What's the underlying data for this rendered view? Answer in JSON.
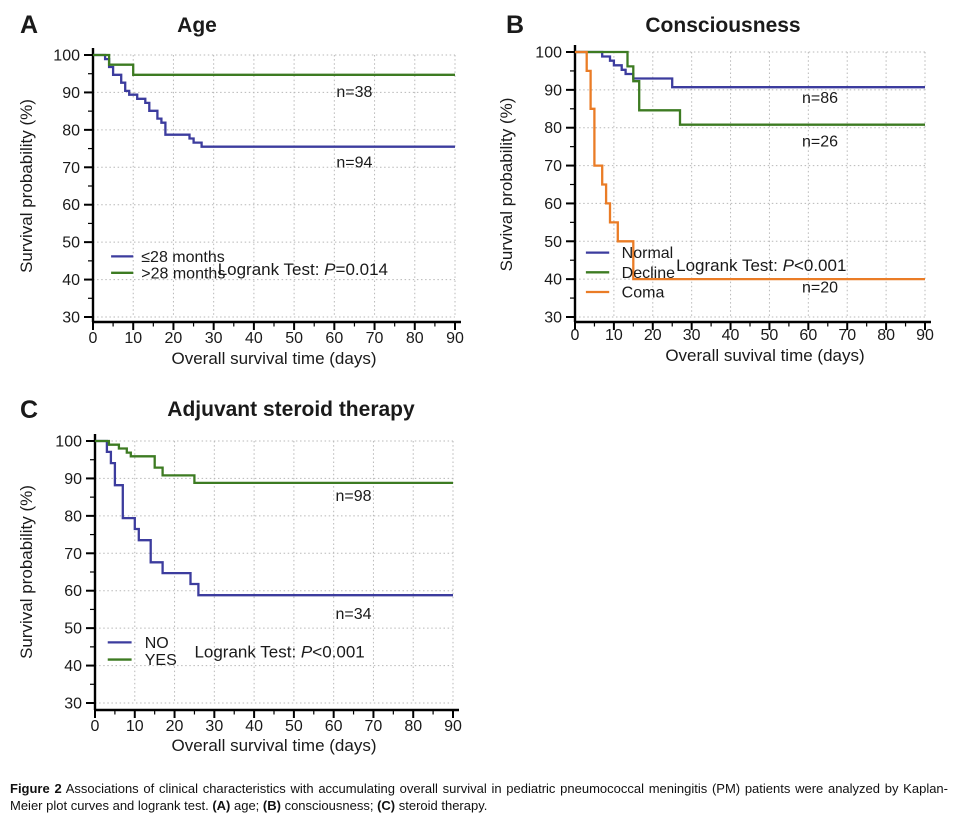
{
  "caption": {
    "parts": [
      {
        "text": "Figure 2",
        "bold": true
      },
      {
        "text": " Associations of clinical characteristics with accumulating overall survival in pediatric pneumococcal meningitis (PM) patients were analyzed by Kaplan-Meier plot curves and logrank test. ",
        "bold": false
      },
      {
        "text": "(A)",
        "bold": true
      },
      {
        "text": " age; ",
        "bold": false
      },
      {
        "text": "(B)",
        "bold": true
      },
      {
        "text": " consciousness; ",
        "bold": false
      },
      {
        "text": "(C)",
        "bold": true
      },
      {
        "text": " steroid therapy.",
        "bold": false
      }
    ]
  },
  "colors": {
    "blue": "#3c3c9e",
    "green": "#3d7b22",
    "orange": "#ea7c26",
    "grid": "#b8b8b8",
    "axis": "#000000",
    "text": "#1a1a1a"
  },
  "chart_data": [
    {
      "type": "line",
      "subtype": "kaplan-meier-step",
      "panel_label": "A",
      "title": "Age",
      "xlabel": "Overall survival time (days)",
      "ylabel": "Survival probability (%)",
      "xlim": [
        0,
        90
      ],
      "ylim": [
        30,
        100
      ],
      "xtick_major": 10,
      "xtick_minor": 5,
      "ytick_major": 10,
      "ytick_minor": 5,
      "grid": true,
      "legend_position": "lower-left",
      "legend": {
        "x_day": 4.5,
        "swatch_days": 5.5,
        "text_day": 12,
        "rows_pct": [
          46.2,
          41.8
        ]
      },
      "logrank": {
        "pre": "Logrank Test: ",
        "p": "P",
        "post": "=0.014",
        "x_day": 31,
        "y_pct": 42.5
      },
      "series": [
        {
          "name": "≤28 months",
          "color": "blue",
          "n": 94,
          "n_label": "n=94",
          "n_x_day": 65,
          "n_y_pct": 70,
          "steps": [
            [
              0,
              100
            ],
            [
              3,
              98.9
            ],
            [
              4,
              96.8
            ],
            [
              5,
              94.7
            ],
            [
              7,
              92.6
            ],
            [
              8,
              90.4
            ],
            [
              9,
              89.4
            ],
            [
              11,
              88.3
            ],
            [
              13,
              87.2
            ],
            [
              14,
              85.1
            ],
            [
              16,
              83.0
            ],
            [
              17,
              81.9
            ],
            [
              18,
              78.7
            ],
            [
              24,
              77.7
            ],
            [
              25,
              76.6
            ],
            [
              27,
              75.5
            ],
            [
              90,
              75.5
            ]
          ]
        },
        {
          "name": ">28 months",
          "color": "green",
          "n": 38,
          "n_label": "n=38",
          "n_x_day": 65,
          "n_y_pct": 88.8,
          "steps": [
            [
              0,
              100
            ],
            [
              4,
              97.4
            ],
            [
              10,
              94.7
            ],
            [
              90,
              94.7
            ]
          ]
        }
      ]
    },
    {
      "type": "line",
      "subtype": "kaplan-meier-step",
      "panel_label": "B",
      "title": "Consciousness",
      "xlabel": "Overall suvival time (days)",
      "ylabel": "Survival probability (%)",
      "xlim": [
        0,
        90
      ],
      "ylim": [
        30,
        100
      ],
      "xtick_major": 10,
      "xtick_minor": 5,
      "ytick_major": 10,
      "ytick_minor": 5,
      "grid": true,
      "legend_position": "lower-left",
      "legend": {
        "x_day": 2.8,
        "swatch_days": 6,
        "text_day": 12,
        "rows_pct": [
          47.0,
          41.8,
          36.6
        ]
      },
      "logrank": {
        "pre": "Logrank Test: ",
        "p": "P",
        "post": "<0.001",
        "x_day": 26,
        "y_pct": 43.5
      },
      "series": [
        {
          "name": "Normal",
          "color": "blue",
          "n": 86,
          "n_label": "n=86",
          "n_x_day": 63,
          "n_y_pct": 86.5,
          "steps": [
            [
              0,
              100
            ],
            [
              7,
              98.8
            ],
            [
              9,
              97.7
            ],
            [
              10,
              96.5
            ],
            [
              12,
              95.3
            ],
            [
              13,
              94.2
            ],
            [
              15,
              93.0
            ],
            [
              25,
              90.7
            ],
            [
              90,
              90.7
            ]
          ]
        },
        {
          "name": "Decline",
          "color": "green",
          "n": 26,
          "n_label": "n=26",
          "n_x_day": 63,
          "n_y_pct": 75,
          "steps": [
            [
              0,
              100
            ],
            [
              13.5,
              96.2
            ],
            [
              15,
              92.3
            ],
            [
              16.5,
              84.6
            ],
            [
              27,
              80.8
            ],
            [
              90,
              80.8
            ]
          ]
        },
        {
          "name": "Coma",
          "color": "orange",
          "n": 20,
          "n_label": "n=20",
          "n_x_day": 63,
          "n_y_pct": 36.5,
          "steps": [
            [
              0,
              100
            ],
            [
              3,
              95
            ],
            [
              4,
              85
            ],
            [
              5,
              70
            ],
            [
              7,
              65
            ],
            [
              8,
              60
            ],
            [
              9,
              55
            ],
            [
              11,
              50
            ],
            [
              15,
              40
            ],
            [
              90,
              40
            ]
          ]
        }
      ]
    },
    {
      "type": "line",
      "subtype": "kaplan-meier-step",
      "panel_label": "C",
      "title": "Adjuvant steroid therapy",
      "xlabel": "Overall survival time (days)",
      "ylabel": "Survival probability (%)",
      "xlim": [
        0,
        90
      ],
      "ylim": [
        30,
        100
      ],
      "xtick_major": 10,
      "xtick_minor": 5,
      "ytick_major": 10,
      "ytick_minor": 5,
      "grid": true,
      "legend_position": "lower-left",
      "legend": {
        "x_day": 3.2,
        "swatch_days": 6,
        "text_day": 12.5,
        "rows_pct": [
          46.2,
          41.6
        ]
      },
      "logrank": {
        "pre": "Logrank Test: ",
        "p": "P",
        "post": "<0.001",
        "x_day": 25,
        "y_pct": 43.5
      },
      "series": [
        {
          "name": "NO",
          "color": "blue",
          "n": 34,
          "n_label": "n=34",
          "n_x_day": 65,
          "n_y_pct": 52.5,
          "steps": [
            [
              0,
              100
            ],
            [
              3,
              97.1
            ],
            [
              4,
              94.1
            ],
            [
              5,
              88.2
            ],
            [
              7,
              79.4
            ],
            [
              10,
              76.5
            ],
            [
              11,
              73.5
            ],
            [
              14,
              67.6
            ],
            [
              17,
              64.7
            ],
            [
              24,
              61.8
            ],
            [
              26,
              58.8
            ],
            [
              90,
              58.8
            ]
          ]
        },
        {
          "name": "YES",
          "color": "green",
          "n": 98,
          "n_label": "n=98",
          "n_x_day": 65,
          "n_y_pct": 84,
          "steps": [
            [
              0,
              100
            ],
            [
              3.5,
              99
            ],
            [
              6,
              98
            ],
            [
              8,
              96.9
            ],
            [
              9,
              95.9
            ],
            [
              15,
              92.9
            ],
            [
              17,
              90.8
            ],
            [
              25,
              88.8
            ],
            [
              90,
              88.8
            ]
          ]
        }
      ]
    }
  ]
}
